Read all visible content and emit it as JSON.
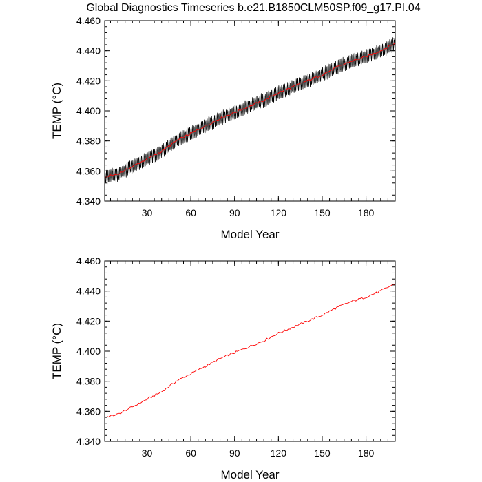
{
  "title": "Global Diagnostics Timeseries b.e21.B1850CLM50SP.f09_g17.PI.04",
  "colors": {
    "monthly": "#000000",
    "annual": "#ff0000",
    "axes": "#000000",
    "background": "#ffffff"
  },
  "chart_data": [
    {
      "type": "line",
      "title": "Global Diagnostics Timeseries b.e21.B1850CLM50SP.f09_g17.PI.04",
      "xlabel": "Model Year",
      "ylabel": "TEMP (°C)",
      "xlim": [
        1,
        200
      ],
      "ylim": [
        4.34,
        4.46
      ],
      "xticks": [
        30,
        60,
        90,
        120,
        150,
        180
      ],
      "xtick_labels": [
        "30",
        "60",
        "90",
        "120",
        "150",
        "180"
      ],
      "yticks": [
        4.34,
        4.36,
        4.38,
        4.4,
        4.42,
        4.44,
        4.46
      ],
      "ytick_labels": [
        "4.340",
        "4.360",
        "4.380",
        "4.400",
        "4.420",
        "4.440",
        "4.460"
      ],
      "grid": false,
      "series": [
        {
          "style": "monthly",
          "color": "#000000",
          "seasonal_amplitude": 0.0045,
          "x": [
            1,
            10,
            20,
            30,
            40,
            50,
            60,
            70,
            80,
            90,
            100,
            110,
            120,
            130,
            140,
            150,
            160,
            170,
            180,
            190,
            200
          ],
          "y": [
            4.356,
            4.358,
            4.363,
            4.368,
            4.373,
            4.38,
            4.385,
            4.39,
            4.395,
            4.399,
            4.403,
            4.407,
            4.412,
            4.416,
            4.42,
            4.424,
            4.429,
            4.433,
            4.436,
            4.44,
            4.445
          ]
        },
        {
          "style": "annual",
          "color": "#ff0000",
          "x": [
            1,
            10,
            20,
            30,
            40,
            50,
            60,
            70,
            80,
            90,
            100,
            110,
            120,
            130,
            140,
            150,
            160,
            170,
            180,
            190,
            200
          ],
          "y": [
            4.356,
            4.358,
            4.363,
            4.368,
            4.373,
            4.38,
            4.385,
            4.39,
            4.395,
            4.399,
            4.403,
            4.407,
            4.412,
            4.416,
            4.42,
            4.424,
            4.429,
            4.433,
            4.436,
            4.44,
            4.445
          ]
        }
      ]
    },
    {
      "type": "line",
      "xlabel": "Model Year",
      "ylabel": "TEMP (°C)",
      "xlim": [
        1,
        200
      ],
      "ylim": [
        4.34,
        4.46
      ],
      "xticks": [
        30,
        60,
        90,
        120,
        150,
        180
      ],
      "xtick_labels": [
        "30",
        "60",
        "90",
        "120",
        "150",
        "180"
      ],
      "yticks": [
        4.34,
        4.36,
        4.38,
        4.4,
        4.42,
        4.44,
        4.46
      ],
      "ytick_labels": [
        "4.340",
        "4.360",
        "4.380",
        "4.400",
        "4.420",
        "4.440",
        "4.460"
      ],
      "grid": false,
      "series": [
        {
          "style": "annual",
          "color": "#ff0000",
          "x": [
            1,
            10,
            20,
            30,
            40,
            50,
            60,
            70,
            80,
            90,
            100,
            110,
            120,
            130,
            140,
            150,
            160,
            170,
            180,
            190,
            200
          ],
          "y": [
            4.356,
            4.358,
            4.363,
            4.368,
            4.373,
            4.38,
            4.385,
            4.39,
            4.395,
            4.399,
            4.403,
            4.407,
            4.412,
            4.416,
            4.42,
            4.424,
            4.429,
            4.433,
            4.436,
            4.44,
            4.445
          ]
        }
      ]
    }
  ]
}
